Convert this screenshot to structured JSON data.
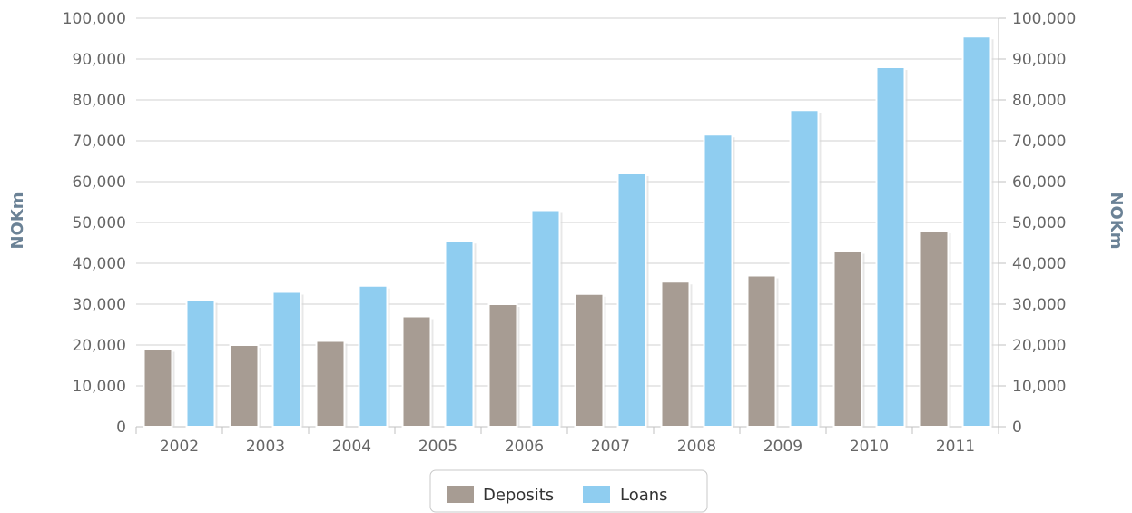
{
  "chart_data": {
    "type": "bar",
    "title": "",
    "xlabel": "",
    "ylabel": "NOKm",
    "y2label": "NOKm",
    "ylim": [
      0,
      100000
    ],
    "yticks": [
      "0",
      "10,000",
      "20,000",
      "30,000",
      "40,000",
      "50,000",
      "60,000",
      "70,000",
      "80,000",
      "90,000",
      "100,000"
    ],
    "grid": true,
    "legend_position": "bottom-center",
    "categories": [
      "2002",
      "2003",
      "2004",
      "2005",
      "2006",
      "2007",
      "2008",
      "2009",
      "2010",
      "2011"
    ],
    "series": [
      {
        "name": "Deposits",
        "color": "#a79c93",
        "values": [
          19000,
          20000,
          21000,
          27000,
          30000,
          32500,
          35500,
          37000,
          43000,
          48000
        ]
      },
      {
        "name": "Loans",
        "color": "#8fcdf0",
        "values": [
          31000,
          33000,
          34500,
          45500,
          53000,
          62000,
          71500,
          77500,
          88000,
          95500
        ]
      }
    ]
  }
}
